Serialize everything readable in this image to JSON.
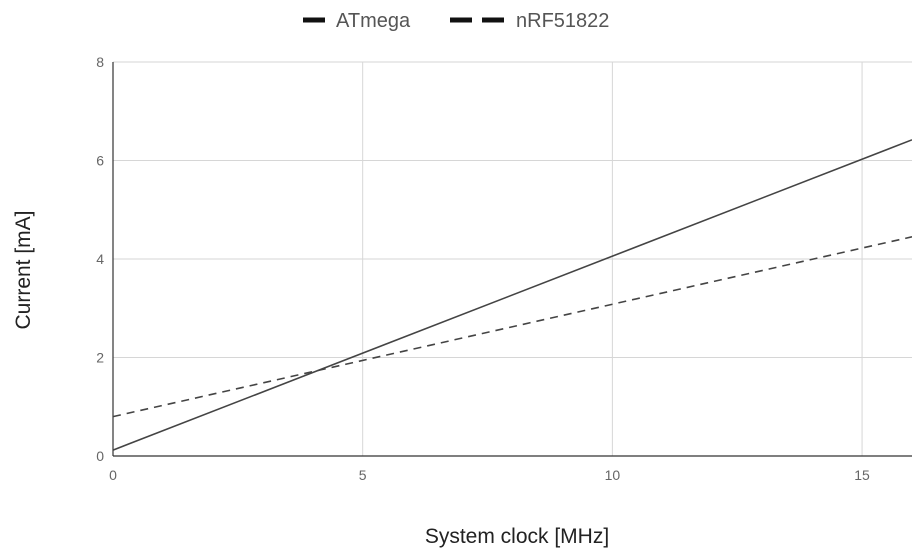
{
  "chart_data": {
    "type": "line",
    "title": "",
    "xlabel": "System clock [MHz]",
    "ylabel": "Current [mA]",
    "xlim": [
      0,
      16
    ],
    "ylim": [
      0,
      8
    ],
    "x_ticks": [
      0,
      5,
      10,
      15
    ],
    "y_ticks": [
      0,
      2,
      4,
      6,
      8
    ],
    "grid": true,
    "legend_position": "top",
    "series": [
      {
        "name": "ATmega",
        "line_style": "solid",
        "color": "#444444",
        "points": [
          [
            0,
            0.12
          ],
          [
            16,
            6.42
          ]
        ]
      },
      {
        "name": "nRF51822",
        "line_style": "dashed",
        "color": "#444444",
        "points": [
          [
            0,
            0.8
          ],
          [
            16,
            4.45
          ]
        ]
      }
    ]
  }
}
